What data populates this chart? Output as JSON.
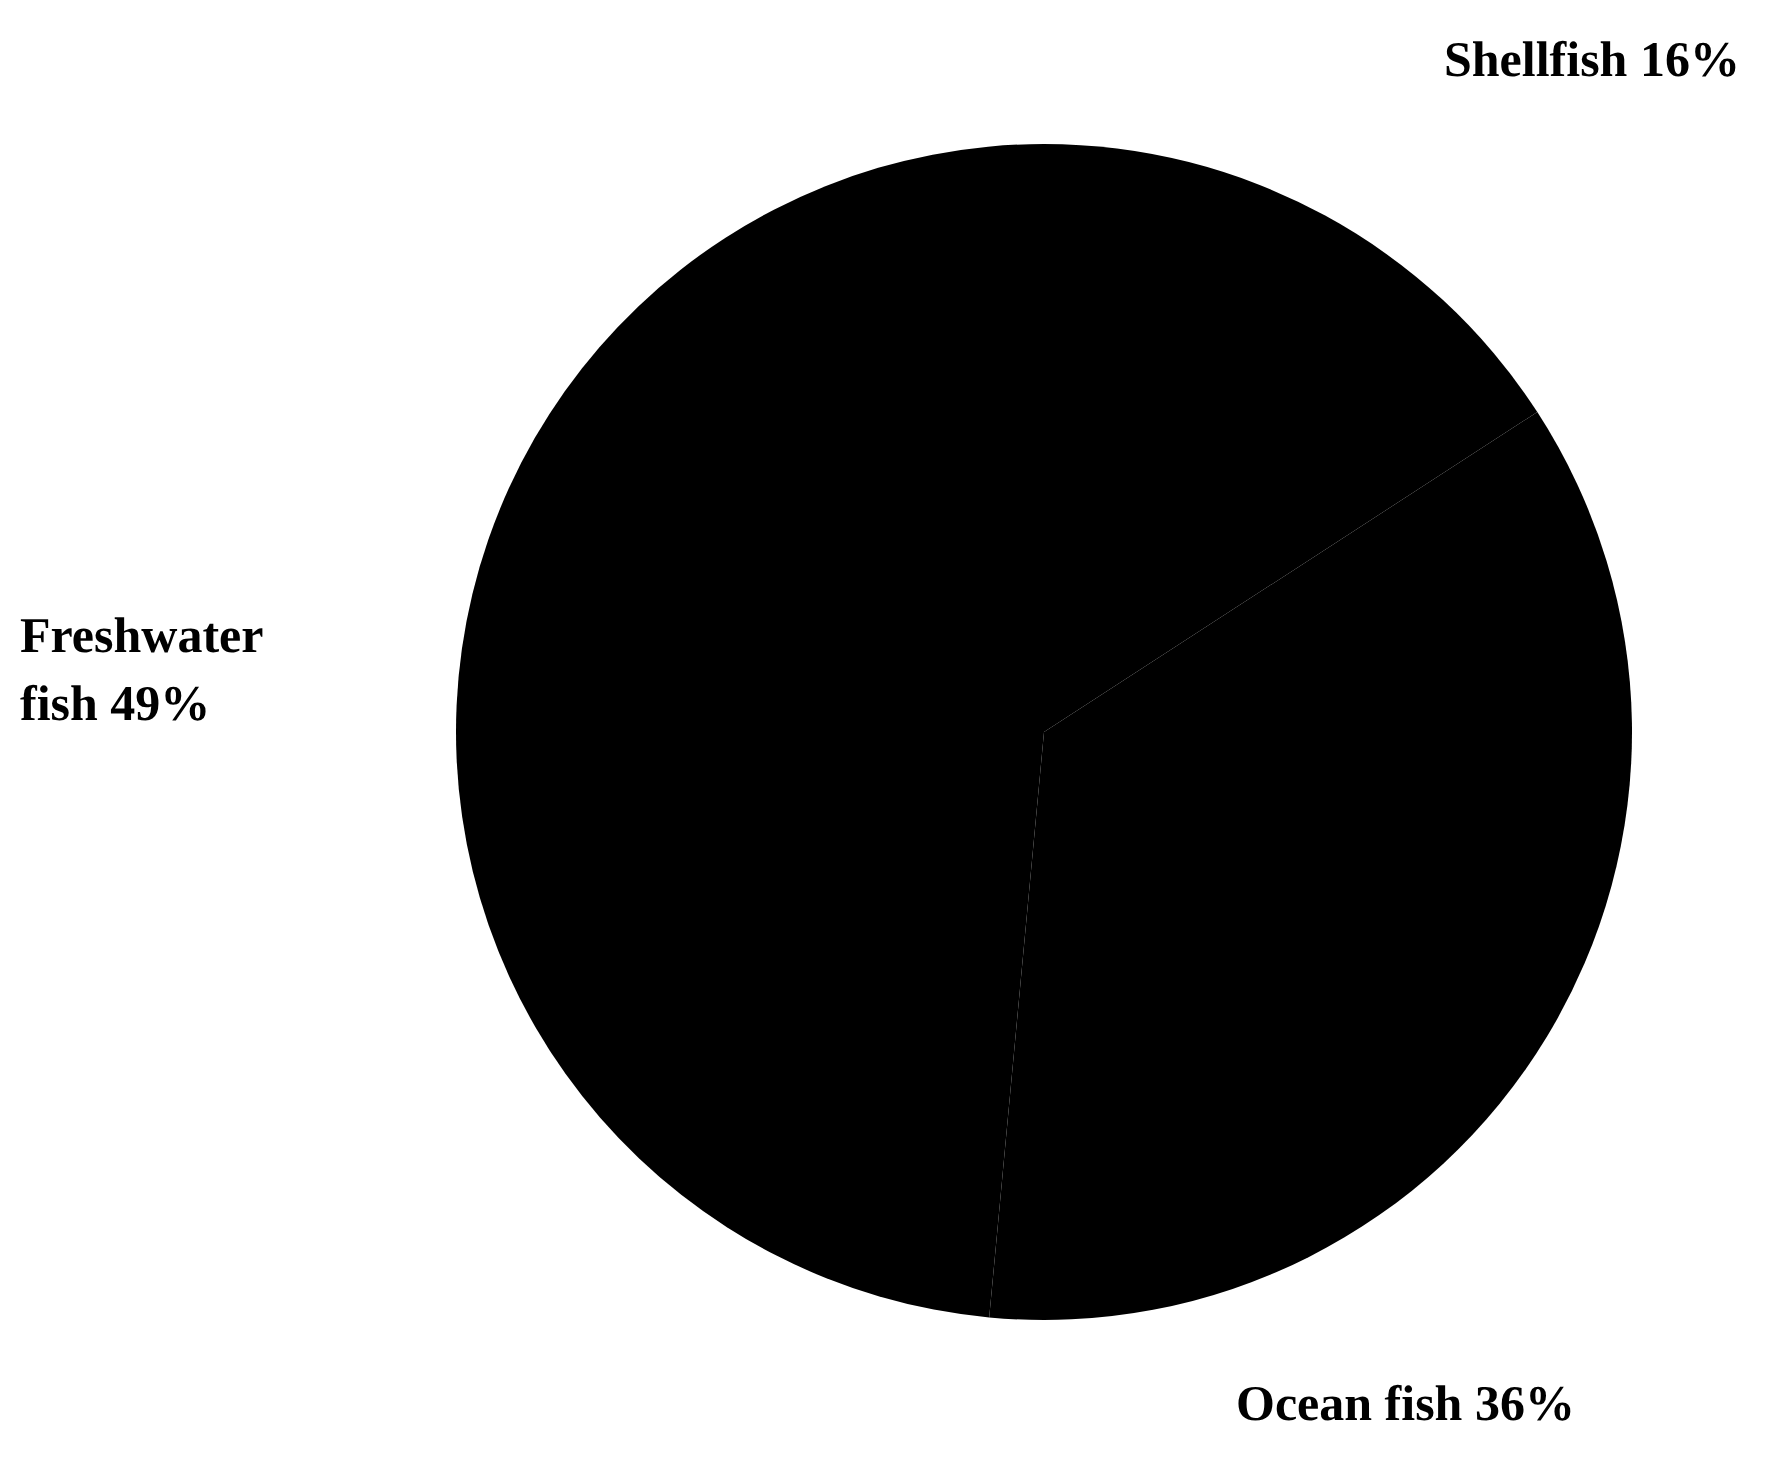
{
  "chart_data": {
    "type": "pie",
    "categories": [
      "Shellfish",
      "Ocean fish",
      "Freshwater fish"
    ],
    "values": [
      16,
      36,
      49
    ],
    "value_labels": [
      "16%",
      "36%",
      "49%"
    ],
    "colors": [
      "#000000",
      "#000000",
      "#000000"
    ]
  }
}
